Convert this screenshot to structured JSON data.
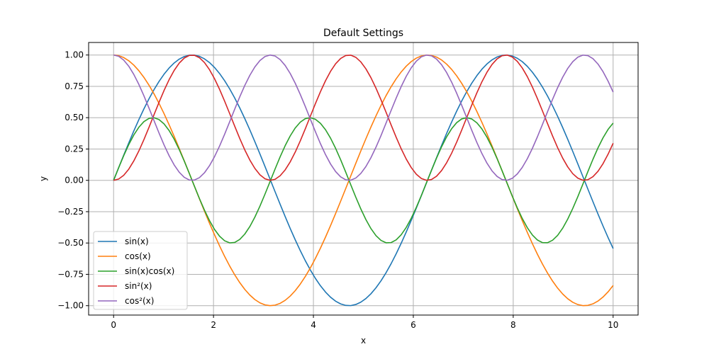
{
  "chart_data": {
    "type": "line",
    "title": "Default Settings",
    "xlabel": "x",
    "ylabel": "y",
    "xlim": [
      -0.5,
      10.5
    ],
    "ylim": [
      -1.075,
      1.1
    ],
    "x_ticks": [
      0,
      2,
      4,
      6,
      8,
      10
    ],
    "x_tick_labels": [
      "0",
      "2",
      "4",
      "6",
      "8",
      "10"
    ],
    "y_ticks": [
      -1.0,
      -0.75,
      -0.5,
      -0.25,
      0.0,
      0.25,
      0.5,
      0.75,
      1.0
    ],
    "y_tick_labels": [
      "−1.00",
      "−0.75",
      "−0.50",
      "−0.25",
      "0.00",
      "0.25",
      "0.50",
      "0.75",
      "1.00"
    ],
    "grid": true,
    "legend_position": "lower-left",
    "x_range": [
      0,
      10
    ],
    "samples": 100,
    "series": [
      {
        "name": "sin(x)",
        "function": "sin",
        "color": "#1f77b4"
      },
      {
        "name": "cos(x)",
        "function": "cos",
        "color": "#ff7f0e"
      },
      {
        "name": "sin(x)cos(x)",
        "function": "sincos",
        "color": "#2ca02c"
      },
      {
        "name": "sin²(x)",
        "function": "sin2",
        "color": "#d62728"
      },
      {
        "name": "cos²(x)",
        "function": "cos2",
        "color": "#9467bd"
      }
    ]
  }
}
